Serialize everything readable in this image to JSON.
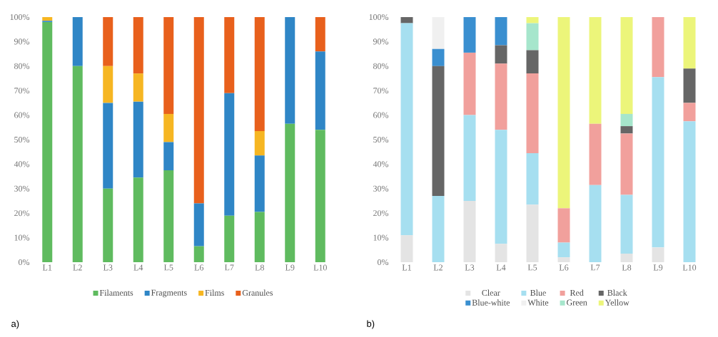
{
  "chart_data": [
    {
      "type": "bar",
      "stacked": true,
      "categories": [
        "L1",
        "L2",
        "L3",
        "L4",
        "L5",
        "L6",
        "L7",
        "L8",
        "L9",
        "L10"
      ],
      "series": [
        {
          "name": "Filaments",
          "color": "#5fbb5f",
          "values": [
            98,
            80,
            30,
            34.5,
            37.5,
            6.5,
            19,
            20.5,
            56.5,
            54
          ]
        },
        {
          "name": "Fragments",
          "color": "#2f86c6",
          "values": [
            0.5,
            20,
            35,
            31,
            11.5,
            17.5,
            50,
            23,
            43.5,
            32
          ]
        },
        {
          "name": "Films",
          "color": "#f6b622",
          "values": [
            1.5,
            0,
            15,
            11.5,
            11.5,
            0,
            0,
            10,
            0,
            0
          ]
        },
        {
          "name": "Granules",
          "color": "#e8601c",
          "values": [
            0,
            0,
            20,
            23,
            39.5,
            76,
            31,
            46.5,
            0,
            14
          ]
        }
      ],
      "ylim": [
        0,
        100
      ],
      "yticks": [
        {
          "value": 0,
          "label": "0%"
        },
        {
          "value": 10,
          "label": "10%"
        },
        {
          "value": 20,
          "label": "20%"
        },
        {
          "value": 30,
          "label": "30%"
        },
        {
          "value": 40,
          "label": "40%"
        },
        {
          "value": 50,
          "label": "50%"
        },
        {
          "value": 60,
          "label": "60%"
        },
        {
          "value": 70,
          "label": "70%"
        },
        {
          "value": 80,
          "label": "80%"
        },
        {
          "value": 90,
          "label": "90%"
        },
        {
          "value": 100,
          "label": "100%"
        }
      ],
      "legend": "bottom",
      "annotations": [
        "a)"
      ]
    },
    {
      "type": "bar",
      "stacked": true,
      "categories": [
        "L1",
        "L2",
        "L3",
        "L4",
        "L5",
        "L6",
        "L7",
        "L8",
        "L9",
        "L10"
      ],
      "series": [
        {
          "name": "Clear",
          "color": "#e4e4e4",
          "values": [
            11,
            0,
            25,
            7.5,
            23.5,
            2,
            0,
            3.5,
            6,
            0
          ]
        },
        {
          "name": "Blue",
          "color": "#a6dff0",
          "values": [
            86.5,
            27,
            35,
            46.5,
            21,
            6,
            31.5,
            24,
            69.5,
            57.5
          ]
        },
        {
          "name": "Red",
          "color": "#f1a09c",
          "values": [
            0,
            0,
            25.5,
            27,
            32.5,
            14,
            25,
            25,
            24.5,
            7.5
          ]
        },
        {
          "name": "Black",
          "color": "#666666",
          "values": [
            2.5,
            53,
            0,
            7.5,
            9.5,
            0,
            0,
            3,
            0,
            14
          ]
        },
        {
          "name": "Blue-white",
          "color": "#3a8fd0",
          "values": [
            0,
            7,
            14.5,
            11.5,
            0,
            0,
            0,
            0,
            0,
            0
          ]
        },
        {
          "name": "White",
          "color": "#f0f0f0",
          "values": [
            0,
            13,
            0,
            0,
            0,
            0,
            0,
            0,
            0,
            0
          ]
        },
        {
          "name": "Green",
          "color": "#a6e6cc",
          "values": [
            0,
            0,
            0,
            0,
            11,
            0,
            0,
            5,
            0,
            0
          ]
        },
        {
          "name": "Yellow",
          "color": "#ecf57a",
          "values": [
            0,
            0,
            0,
            0,
            2.5,
            78,
            43.5,
            39.5,
            0,
            21
          ]
        }
      ],
      "ylim": [
        0,
        100
      ],
      "yticks": [
        {
          "value": 0,
          "label": "0%"
        },
        {
          "value": 10,
          "label": "10%"
        },
        {
          "value": 20,
          "label": "20%"
        },
        {
          "value": 30,
          "label": "30%"
        },
        {
          "value": 40,
          "label": "40%"
        },
        {
          "value": 50,
          "label": "50%"
        },
        {
          "value": 60,
          "label": "60%"
        },
        {
          "value": 70,
          "label": "70%"
        },
        {
          "value": 80,
          "label": "80%"
        },
        {
          "value": 90,
          "label": "90%"
        },
        {
          "value": 100,
          "label": "100%"
        }
      ],
      "legend": "bottom",
      "annotations": [
        "b)"
      ]
    }
  ]
}
